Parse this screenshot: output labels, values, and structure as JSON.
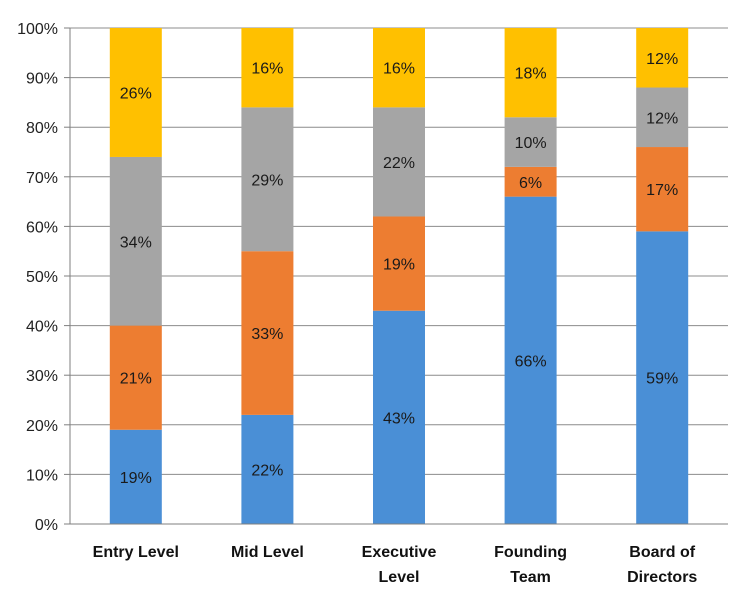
{
  "chart_data": {
    "type": "bar",
    "stacked": true,
    "categories": [
      [
        "Entry Level"
      ],
      [
        "Mid Level"
      ],
      [
        "Executive",
        "Level"
      ],
      [
        "Founding",
        "Team"
      ],
      [
        "Board of",
        "Directors"
      ]
    ],
    "series": [
      {
        "color": "#4a8fd6",
        "values": [
          19,
          22,
          43,
          66,
          59
        ]
      },
      {
        "color": "#ed7d31",
        "values": [
          21,
          33,
          19,
          6,
          17
        ]
      },
      {
        "color": "#a5a5a5",
        "values": [
          34,
          29,
          22,
          10,
          12
        ]
      },
      {
        "color": "#ffc000",
        "values": [
          26,
          16,
          16,
          18,
          12
        ]
      }
    ],
    "ylim": [
      0,
      100
    ],
    "yticks": [
      "0%",
      "10%",
      "20%",
      "30%",
      "40%",
      "50%",
      "60%",
      "70%",
      "80%",
      "90%",
      "100%"
    ],
    "grid": true,
    "legend": "none"
  }
}
